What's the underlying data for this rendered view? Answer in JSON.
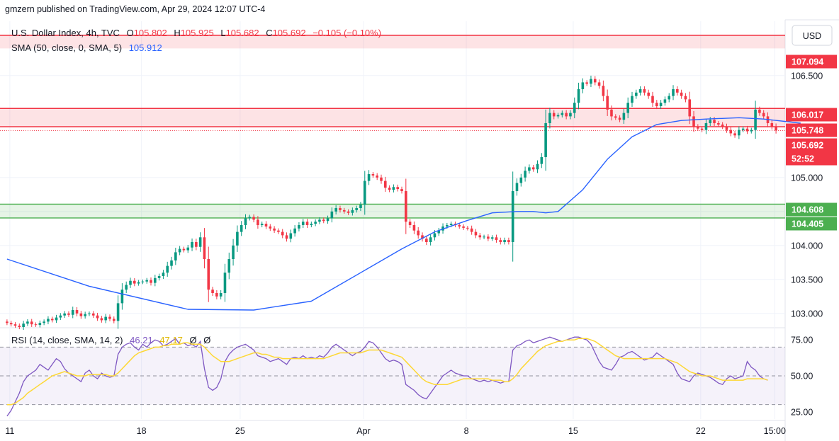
{
  "published": "gmzern published on TradingView.com, Apr 29, 2024 12:07 UTC-4",
  "currency_label": "USD",
  "ohlc_legend": {
    "symbol": "U.S. Dollar Index, 4h, TVC",
    "o_label": "O",
    "o": "105.802",
    "h_label": "H",
    "h": "105.925",
    "l_label": "L",
    "l": "105.682",
    "c_label": "C",
    "c": "105.692",
    "change": "−0.105 (−0.10%)"
  },
  "sma_legend": {
    "label": "SMA (50, close, 0, SMA, 5)",
    "value": "105.912"
  },
  "rsi_legend": {
    "label": "RSI (14, close, SMA, 14, 2)",
    "rsi": "46.21",
    "sma": "47.17",
    "extra1": "Ø",
    "extra2": "Ø"
  },
  "price_tags": [
    {
      "text": "107.094",
      "color": "#f23645"
    },
    {
      "text": "106.017",
      "color": "#f23645"
    },
    {
      "text": "105.748",
      "color": "#f23645"
    },
    {
      "text": "105.692",
      "color": "#f23645"
    },
    {
      "text": "52:52",
      "color": "#f23645"
    },
    {
      "text": "104.608",
      "color": "#4caf50"
    },
    {
      "text": "104.405",
      "color": "#4caf50"
    }
  ],
  "colors": {
    "up": "#089981",
    "down": "#f23645",
    "sma": "#2962ff",
    "rsi": "#7e57c2",
    "rsi_sma": "#fdd835",
    "resistance_zone": "#f23645",
    "support_zone": "#4caf50"
  },
  "chart_data": [
    {
      "type": "candlestick",
      "title": "U.S. Dollar Index, 4h, TVC",
      "y_ticks": [
        103.0,
        103.5,
        104.0,
        104.5,
        105.0,
        106.5
      ],
      "y_tick_labels": [
        "103.000",
        "103.500",
        "104.000",
        "",
        "105.000",
        "106.500"
      ],
      "ylim": [
        102.8,
        107.3
      ],
      "x_tick_labels": [
        "11",
        "18",
        "25",
        "Apr",
        "8",
        "15",
        "22",
        "15:00"
      ],
      "x_tick_dates": [
        "2024-03-11",
        "2024-03-18",
        "2024-03-25",
        "2024-04-01",
        "2024-04-08",
        "2024-04-15",
        "2024-04-22",
        "2024-04-25 15:00"
      ],
      "horizontal_lines": [
        {
          "value": 107.094,
          "style": "resistance"
        },
        {
          "value": 106.017,
          "style": "resistance"
        },
        {
          "value": 105.748,
          "style": "resistance"
        },
        {
          "value": 105.692,
          "style": "last-price-dotted"
        },
        {
          "value": 104.608,
          "style": "support"
        },
        {
          "value": 104.405,
          "style": "support"
        }
      ],
      "zones": [
        {
          "from": 106.9,
          "to": 107.094,
          "kind": "resistance"
        },
        {
          "from": 105.748,
          "to": 106.017,
          "kind": "resistance"
        },
        {
          "from": 104.405,
          "to": 104.608,
          "kind": "support"
        }
      ],
      "closes": [
        102.86,
        102.84,
        102.82,
        102.8,
        102.85,
        102.88,
        102.84,
        102.83,
        102.86,
        102.88,
        102.92,
        102.9,
        102.94,
        102.97,
        103.0,
        102.98,
        103.05,
        103.0,
        102.96,
        102.99,
        103.0,
        102.97,
        102.93,
        102.9,
        102.95,
        102.92,
        102.89,
        103.15,
        103.35,
        103.42,
        103.48,
        103.44,
        103.46,
        103.47,
        103.49,
        103.45,
        103.52,
        103.55,
        103.6,
        103.7,
        103.78,
        103.9,
        103.95,
        103.93,
        103.97,
        104.05,
        103.98,
        104.12,
        103.8,
        103.35,
        103.3,
        103.25,
        103.3,
        103.6,
        103.8,
        104.0,
        104.2,
        104.3,
        104.4,
        104.42,
        104.38,
        104.3,
        104.32,
        104.28,
        104.25,
        104.22,
        104.2,
        104.15,
        104.1,
        104.18,
        104.25,
        104.3,
        104.35,
        104.3,
        104.32,
        104.35,
        104.38,
        104.36,
        104.4,
        104.5,
        104.55,
        104.52,
        104.5,
        104.48,
        104.52,
        104.55,
        104.6,
        104.95,
        105.05,
        105.03,
        105.0,
        104.95,
        104.85,
        104.82,
        104.86,
        104.83,
        104.8,
        104.35,
        104.3,
        104.22,
        104.15,
        104.1,
        104.05,
        104.12,
        104.18,
        104.22,
        104.28,
        104.3,
        104.32,
        104.3,
        104.28,
        104.26,
        104.25,
        104.2,
        104.15,
        104.12,
        104.13,
        104.1,
        104.12,
        104.08,
        104.05,
        104.08,
        104.05,
        104.8,
        104.92,
        105.0,
        105.1,
        105.15,
        105.12,
        105.2,
        105.3,
        105.8,
        105.95,
        105.9,
        105.92,
        105.95,
        105.9,
        105.95,
        106.1,
        106.3,
        106.4,
        106.38,
        106.45,
        106.4,
        106.35,
        106.2,
        106.0,
        105.9,
        105.88,
        105.85,
        105.95,
        106.1,
        106.2,
        106.25,
        106.3,
        106.25,
        106.2,
        106.1,
        106.05,
        106.1,
        106.15,
        106.2,
        106.3,
        106.25,
        106.2,
        106.15,
        105.9,
        105.75,
        105.72,
        105.7,
        105.8,
        105.85,
        105.8,
        105.78,
        105.75,
        105.7,
        105.65,
        105.62,
        105.7,
        105.72,
        105.68,
        105.7,
        106.0,
        105.95,
        105.9,
        105.8,
        105.75,
        105.692
      ],
      "sma_values": [
        103.8,
        103.4,
        103.06,
        103.05,
        103.18,
        103.6,
        103.95,
        104.2,
        104.37,
        104.48,
        104.5,
        104.5,
        104.48,
        104.5,
        104.82,
        105.27,
        105.6,
        105.78,
        105.84,
        105.86,
        105.88,
        105.86,
        105.8
      ],
      "sma_x_index": [
        0,
        20,
        44,
        60,
        74,
        86,
        96,
        104,
        112,
        118,
        124,
        128,
        131,
        134,
        140,
        146,
        152,
        158,
        164,
        170,
        178,
        184,
        193
      ]
    },
    {
      "type": "line",
      "title": "RSI (14, close, SMA, 14, 2)",
      "y_ticks": [
        25,
        50,
        75
      ],
      "y_tick_labels": [
        "25.00",
        "50.00",
        "75.00"
      ],
      "ylim": [
        20,
        82
      ],
      "bands": {
        "upper": 70,
        "middle": 50,
        "lower": 30
      },
      "series": [
        {
          "values": [
            22,
            26,
            32,
            38,
            46,
            50,
            52,
            54,
            58,
            56,
            54,
            58,
            62,
            60,
            55,
            52,
            50,
            48,
            46,
            52,
            54,
            50,
            48,
            52,
            50,
            49,
            50,
            65,
            70,
            72,
            73,
            70,
            68,
            72,
            70,
            73,
            75,
            74,
            71,
            72,
            74,
            76,
            72,
            73,
            71,
            72,
            70,
            74,
            55,
            42,
            40,
            42,
            48,
            60,
            65,
            68,
            70,
            71,
            72,
            70,
            68,
            64,
            63,
            62,
            60,
            61,
            62,
            60,
            58,
            62,
            63,
            62,
            64,
            62,
            63,
            62,
            64,
            63,
            66,
            70,
            72,
            70,
            68,
            66,
            64,
            66,
            67,
            70,
            74,
            73,
            70,
            66,
            62,
            60,
            61,
            60,
            58,
            44,
            42,
            40,
            37,
            35,
            34,
            38,
            42,
            46,
            50,
            52,
            54,
            52,
            51,
            50,
            50,
            48,
            47,
            46,
            47,
            46,
            47,
            46,
            45,
            46,
            46,
            68,
            71,
            72,
            74,
            75,
            73,
            74,
            75,
            76,
            77,
            76,
            75,
            74,
            75,
            76,
            77,
            77,
            76,
            75,
            72,
            66,
            60,
            56,
            55,
            54,
            58,
            63,
            64,
            66,
            67,
            65,
            63,
            61,
            62,
            63,
            66,
            64,
            62,
            60,
            58,
            52,
            48,
            47,
            46,
            50,
            52,
            51,
            50,
            49,
            47,
            45,
            44,
            48,
            50,
            48,
            49,
            50,
            60,
            56,
            54,
            50,
            48,
            47
          ],
          "name": ""
        },
        {
          "values": [
            30,
            30,
            31,
            33,
            35,
            38,
            40,
            42,
            44,
            46,
            48,
            50,
            51,
            52,
            53,
            52,
            51,
            50,
            50,
            50,
            51,
            51,
            51,
            51,
            51,
            50,
            50,
            52,
            55,
            58,
            61,
            64,
            66,
            67,
            68,
            69,
            70,
            70,
            71,
            71,
            72,
            72,
            72,
            73,
            73,
            72,
            72,
            72,
            70,
            67,
            64,
            62,
            60,
            60,
            60,
            61,
            62,
            63,
            64,
            65,
            66,
            66,
            65,
            65,
            64,
            63,
            63,
            62,
            62,
            62,
            62,
            62,
            62,
            62,
            62,
            62,
            62,
            62,
            63,
            64,
            65,
            66,
            66,
            66,
            66,
            66,
            66,
            67,
            68,
            68,
            68,
            68,
            67,
            66,
            65,
            64,
            63,
            60,
            57,
            54,
            51,
            48,
            46,
            45,
            44,
            44,
            44,
            44,
            45,
            46,
            47,
            48,
            48,
            48,
            48,
            48,
            48,
            48,
            47,
            47,
            47,
            46,
            46,
            48,
            51,
            55,
            58,
            61,
            64,
            67,
            69,
            71,
            72,
            73,
            74,
            74,
            75,
            75,
            75,
            76,
            76,
            76,
            75,
            74,
            72,
            70,
            68,
            66,
            64,
            63,
            62,
            62,
            62,
            62,
            62,
            62,
            62,
            62,
            62,
            62,
            62,
            61,
            60,
            59,
            57,
            55,
            53,
            52,
            51,
            50,
            50,
            50,
            49,
            48,
            47,
            47,
            47,
            47,
            47,
            47,
            48,
            48,
            48,
            48,
            48,
            47
          ],
          "name": ""
        }
      ]
    }
  ]
}
